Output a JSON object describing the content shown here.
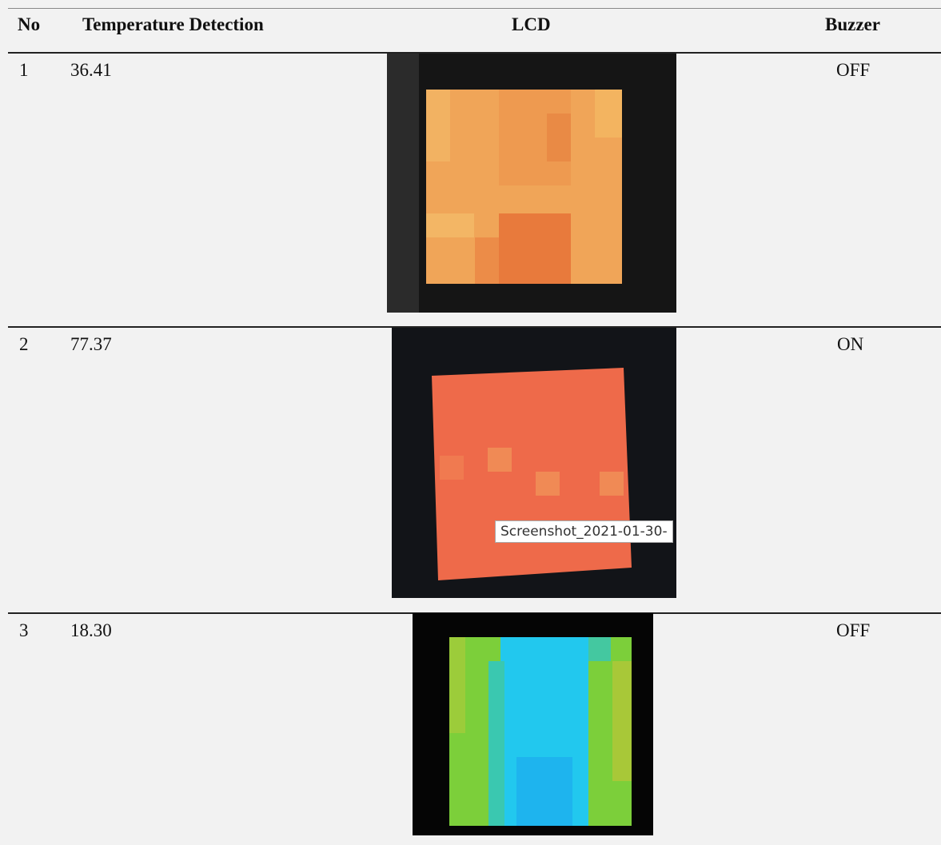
{
  "table": {
    "header": [
      "No",
      "Temperature Detection",
      "LCD",
      "Buzzer"
    ],
    "rows": [
      {
        "no": "1",
        "temperature": "36.41",
        "buzzer": "OFF"
      },
      {
        "no": "2",
        "temperature": "77.37",
        "buzzer": "ON",
        "overlay": "Screenshot_2021-01-30-"
      },
      {
        "no": "3",
        "temperature": "18.30",
        "buzzer": "OFF"
      }
    ]
  }
}
